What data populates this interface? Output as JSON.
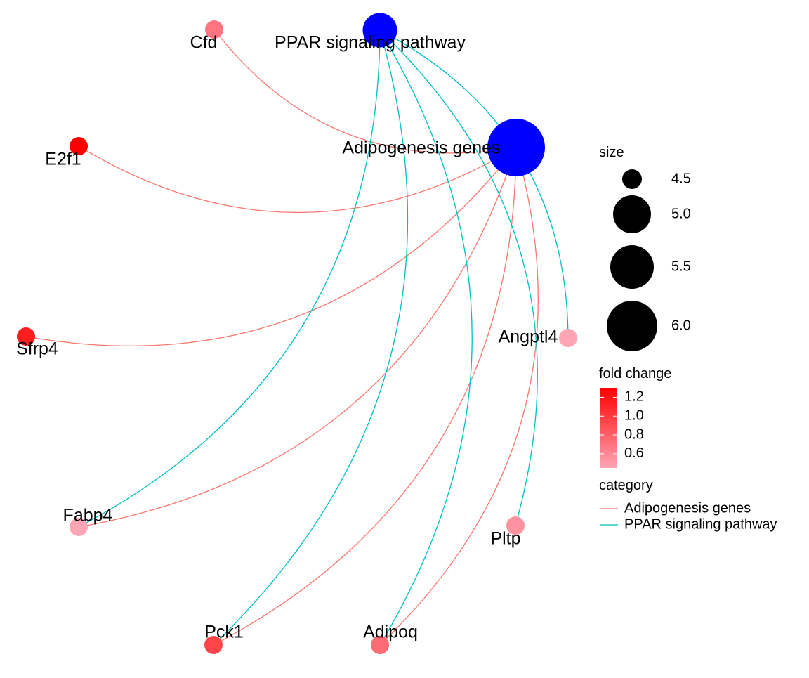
{
  "network": {
    "category_nodes": [
      {
        "id": "ppar",
        "label": "PPAR signaling pathway",
        "size": 4.5,
        "color": "#0000FF"
      },
      {
        "id": "adipo",
        "label": "Adipogenesis genes",
        "size": 6.0,
        "color": "#0000FF"
      }
    ],
    "gene_nodes": [
      {
        "id": "cfd",
        "label": "Cfd",
        "fold_change": 0.7
      },
      {
        "id": "e2f1",
        "label": "E2f1",
        "fold_change": 1.3
      },
      {
        "id": "sfrp4",
        "label": "Sfrp4",
        "fold_change": 1.15
      },
      {
        "id": "fabp4",
        "label": "Fabp4",
        "fold_change": 0.45
      },
      {
        "id": "pck1",
        "label": "Pck1",
        "fold_change": 0.95
      },
      {
        "id": "adipoq",
        "label": "Adipoq",
        "fold_change": 0.75
      },
      {
        "id": "pltp",
        "label": "Pltp",
        "fold_change": 0.55
      },
      {
        "id": "angptl4",
        "label": "Angptl4",
        "fold_change": 0.45
      }
    ],
    "edges": [
      {
        "from": "adipo",
        "to": "cfd",
        "category": "Adipogenesis genes"
      },
      {
        "from": "adipo",
        "to": "e2f1",
        "category": "Adipogenesis genes"
      },
      {
        "from": "adipo",
        "to": "sfrp4",
        "category": "Adipogenesis genes"
      },
      {
        "from": "adipo",
        "to": "fabp4",
        "category": "Adipogenesis genes"
      },
      {
        "from": "adipo",
        "to": "pck1",
        "category": "Adipogenesis genes"
      },
      {
        "from": "adipo",
        "to": "adipoq",
        "category": "Adipogenesis genes"
      },
      {
        "from": "ppar",
        "to": "angptl4",
        "category": "PPAR signaling pathway"
      },
      {
        "from": "ppar",
        "to": "pltp",
        "category": "PPAR signaling pathway"
      },
      {
        "from": "ppar",
        "to": "adipoq",
        "category": "PPAR signaling pathway"
      },
      {
        "from": "ppar",
        "to": "pck1",
        "category": "PPAR signaling pathway"
      },
      {
        "from": "ppar",
        "to": "fabp4",
        "category": "PPAR signaling pathway"
      }
    ]
  },
  "legend": {
    "size": {
      "title": "size",
      "entries": [
        {
          "value": 4.5,
          "label": "4.5"
        },
        {
          "value": 5.0,
          "label": "5.0"
        },
        {
          "value": 5.5,
          "label": "5.5"
        },
        {
          "value": 6.0,
          "label": "6.0"
        }
      ]
    },
    "fold_change": {
      "title": "fold change",
      "min": 0.45,
      "max": 1.3,
      "low_color": "#FFA5B4",
      "high_color": "#FF0000",
      "ticks": [
        {
          "value": 1.2,
          "label": "1.2"
        },
        {
          "value": 1.0,
          "label": "1.0"
        },
        {
          "value": 0.8,
          "label": "0.8"
        },
        {
          "value": 0.6,
          "label": "0.6"
        }
      ]
    },
    "category": {
      "title": "category",
      "entries": [
        {
          "label": "Adipogenesis genes",
          "color": "#F8766D"
        },
        {
          "label": "PPAR signaling pathway",
          "color": "#00BFC4"
        }
      ]
    }
  }
}
